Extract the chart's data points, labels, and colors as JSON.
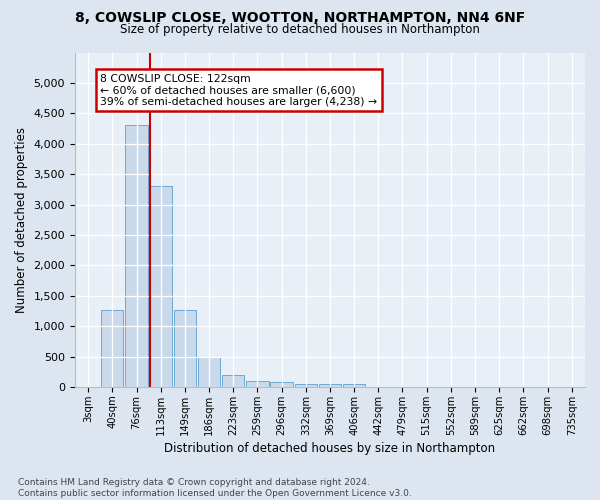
{
  "title1": "8, COWSLIP CLOSE, WOOTTON, NORTHAMPTON, NN4 6NF",
  "title2": "Size of property relative to detached houses in Northampton",
  "xlabel": "Distribution of detached houses by size in Northampton",
  "ylabel": "Number of detached properties",
  "footnote": "Contains HM Land Registry data © Crown copyright and database right 2024.\nContains public sector information licensed under the Open Government Licence v3.0.",
  "bar_labels": [
    "3sqm",
    "40sqm",
    "76sqm",
    "113sqm",
    "149sqm",
    "186sqm",
    "223sqm",
    "259sqm",
    "296sqm",
    "332sqm",
    "369sqm",
    "406sqm",
    "442sqm",
    "479sqm",
    "515sqm",
    "552sqm",
    "589sqm",
    "625sqm",
    "662sqm",
    "698sqm",
    "735sqm"
  ],
  "bar_values": [
    0,
    1260,
    4300,
    3300,
    1270,
    490,
    200,
    100,
    75,
    55,
    55,
    45,
    0,
    0,
    0,
    0,
    0,
    0,
    0,
    0,
    0
  ],
  "bar_color": "#c9d9ea",
  "bar_edge_color": "#6aaad4",
  "property_line_x": 2.57,
  "property_line_color": "#cc0000",
  "annotation_text": "8 COWSLIP CLOSE: 122sqm\n← 60% of detached houses are smaller (6,600)\n39% of semi-detached houses are larger (4,238) →",
  "annotation_box_color": "#ffffff",
  "annotation_box_edge": "#cc0000",
  "ylim": [
    0,
    5500
  ],
  "yticks": [
    0,
    500,
    1000,
    1500,
    2000,
    2500,
    3000,
    3500,
    4000,
    4500,
    5000
  ],
  "background_color": "#dde6f0",
  "axes_background": "#e8eff7"
}
